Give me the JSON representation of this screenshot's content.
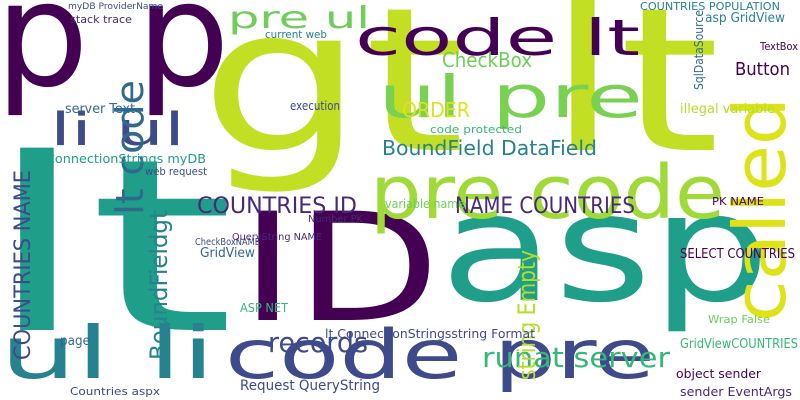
{
  "words": [
    {
      "text": "p p",
      "color": "#440154"
    },
    {
      "text": "gt lt",
      "color": "#c2df23"
    },
    {
      "text": "lt",
      "color": "#1f9e89"
    },
    {
      "text": "ID",
      "color": "#440154"
    },
    {
      "text": "asp",
      "color": "#1f9e89"
    },
    {
      "text": "code pre",
      "color": "#3e4a89"
    },
    {
      "text": "ul li",
      "color": "#26828e"
    },
    {
      "text": "pre code",
      "color": "#a0da39"
    },
    {
      "text": "called",
      "color": "#dde318"
    },
    {
      "text": "code lt",
      "color": "#440154"
    },
    {
      "text": "ul pre",
      "color": "#7ad151"
    },
    {
      "text": "li ul",
      "color": "#3e4a89"
    },
    {
      "text": "pre ul",
      "color": "#6ece58"
    },
    {
      "text": "lt code",
      "color": "#31688e"
    },
    {
      "text": "COUNTRIES NAME",
      "color": "#3e4a89"
    },
    {
      "text": "COUNTRIES ID",
      "color": "#482878"
    },
    {
      "text": "NAME COUNTRIES",
      "color": "#482878"
    },
    {
      "text": "BoundField DataField",
      "color": "#26828e"
    },
    {
      "text": "CheckBox",
      "color": "#6ece58"
    },
    {
      "text": "Button",
      "color": "#440154"
    },
    {
      "text": "runat server",
      "color": "#35b779"
    },
    {
      "text": "records",
      "color": "#3e4a89"
    },
    {
      "text": "BoundFieldgt",
      "color": "#26828e"
    },
    {
      "text": "ORDER",
      "color": "#dde318"
    },
    {
      "text": "string Empty",
      "color": "#b5de2b"
    },
    {
      "text": "GridViewCOUNTRIES",
      "color": "#35b779"
    },
    {
      "text": "SELECT COUNTRIES",
      "color": "#440154"
    },
    {
      "text": "ConnectionStrings myDB",
      "color": "#1f9e89"
    },
    {
      "text": "Request QueryString",
      "color": "#3e4a89"
    },
    {
      "text": "lt ConnectionStringsstring Format",
      "color": "#3e4a89"
    },
    {
      "text": "object sender",
      "color": "#440154"
    },
    {
      "text": "sender EventArgs",
      "color": "#482878"
    },
    {
      "text": "Countries aspx",
      "color": "#3e4a89"
    },
    {
      "text": "GridView",
      "color": "#31688e"
    },
    {
      "text": "ASP NET",
      "color": "#35b779"
    },
    {
      "text": "CheckBoxNAME",
      "color": "#3e4a89"
    },
    {
      "text": "code protected",
      "color": "#35b779"
    },
    {
      "text": "variable name",
      "color": "#6ece58"
    },
    {
      "text": "SqlDataSource",
      "color": "#31688e"
    },
    {
      "text": "asp GridView",
      "color": "#26828e"
    },
    {
      "text": "COUNTRIES POPULATION",
      "color": "#26828e"
    },
    {
      "text": "QueryString NAME",
      "color": "#482878"
    },
    {
      "text": "stack trace",
      "color": "#482878"
    },
    {
      "text": "myDB ProviderName",
      "color": "#3e4a89"
    },
    {
      "text": "server Text",
      "color": "#31688e"
    },
    {
      "text": "page",
      "color": "#31688e"
    },
    {
      "text": "Number PK",
      "color": "#482878"
    },
    {
      "text": "execution",
      "color": "#3e4a89"
    },
    {
      "text": "illegal variable",
      "color": "#b5de2b"
    },
    {
      "text": "TextBox",
      "color": "#440154"
    },
    {
      "text": "PK NAME",
      "color": "#440154"
    },
    {
      "text": "Wrap False",
      "color": "#6ece58"
    },
    {
      "text": "web request",
      "color": "#3e4a89"
    },
    {
      "text": "current web",
      "color": "#26828e"
    }
  ]
}
